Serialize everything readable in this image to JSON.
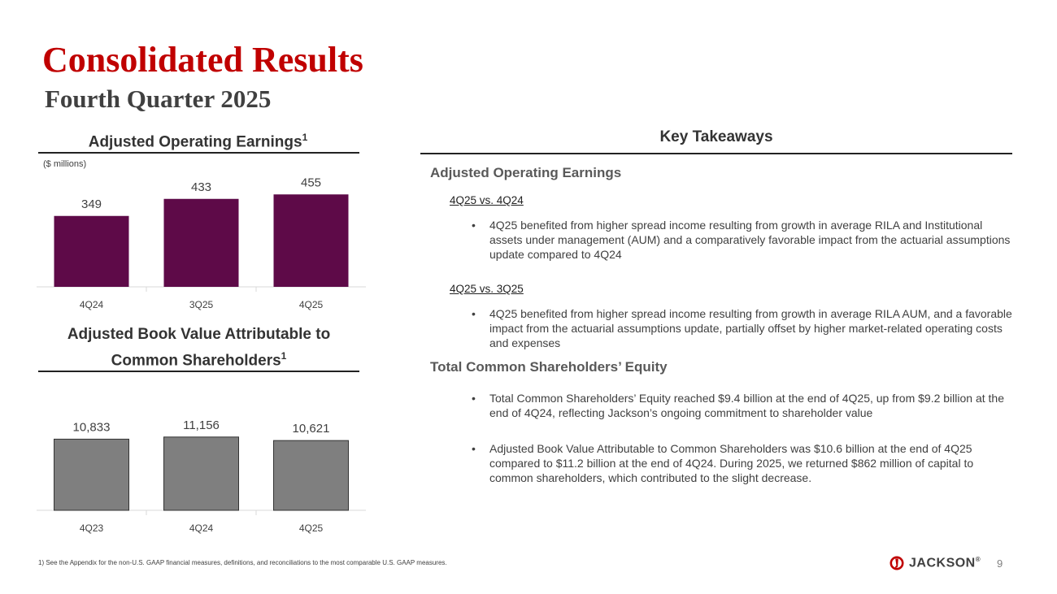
{
  "title": "Consolidated Results",
  "subtitle": "Fourth Quarter 2025",
  "chart1": {
    "heading": "Adjusted Operating Earnings",
    "footnote_mark": "1",
    "units": "($ millions)"
  },
  "chart2": {
    "heading_line1": "Adjusted Book Value Attributable to",
    "heading_line2": "Common Shareholders",
    "footnote_mark": "1"
  },
  "chart_data": [
    {
      "type": "bar",
      "title": "Adjusted Operating Earnings",
      "categories": [
        "4Q24",
        "3Q25",
        "4Q25"
      ],
      "values": [
        349,
        433,
        455
      ],
      "value_labels": [
        "349",
        "433",
        "455"
      ],
      "ylabel": "($ millions)",
      "ylim": [
        0,
        500
      ],
      "bar_color": "#5e0a48",
      "grid": false,
      "legend": "none"
    },
    {
      "type": "bar",
      "title": "Adjusted Book Value Attributable to Common Shareholders",
      "categories": [
        "4Q23",
        "4Q24",
        "4Q25"
      ],
      "values": [
        10833,
        11156,
        10621
      ],
      "value_labels": [
        "10,833",
        "11,156",
        "10,621"
      ],
      "ylim": [
        0,
        12000
      ],
      "bar_color": "#7f7f7f",
      "grid": false,
      "legend": "none"
    }
  ],
  "takeaways": {
    "heading": "Key Takeaways",
    "section1": {
      "heading": "Adjusted Operating Earnings",
      "comparisons": [
        {
          "label": "4Q25 vs. 4Q24",
          "bullet": "4Q25 benefited from higher spread income resulting from growth in average RILA and Institutional assets under management (AUM) and a comparatively favorable impact from the actuarial assumptions update compared to 4Q24"
        },
        {
          "label": "4Q25 vs. 3Q25",
          "bullet": "4Q25 benefited from higher spread income resulting from growth in average RILA AUM, and a favorable impact from the actuarial assumptions update, partially offset by higher market-related operating costs and expenses"
        }
      ]
    },
    "section2": {
      "heading": "Total Common Shareholders’ Equity",
      "bullets": [
        "Total Common Shareholders’ Equity reached $9.4 billion at the end of 4Q25, up from $9.2 billion at the end of 4Q24, reflecting Jackson’s ongoing commitment to shareholder value",
        "Adjusted Book Value Attributable to Common Shareholders was $10.6 billion at the end of 4Q25 compared to $11.2 billion at the end of 4Q24. During 2025, we returned $862 million of capital to common shareholders, which contributed to the slight decrease."
      ]
    },
    "bullet_glyph": "•"
  },
  "footnote": "1) See the Appendix for the non-U.S. GAAP financial measures, definitions, and reconciliations to the most comparable U.S. GAAP measures.",
  "logo": {
    "text": "JACKSON",
    "mark": "®",
    "icon": "jackson-logo-icon",
    "color": "#c00000"
  },
  "page_number": "9"
}
